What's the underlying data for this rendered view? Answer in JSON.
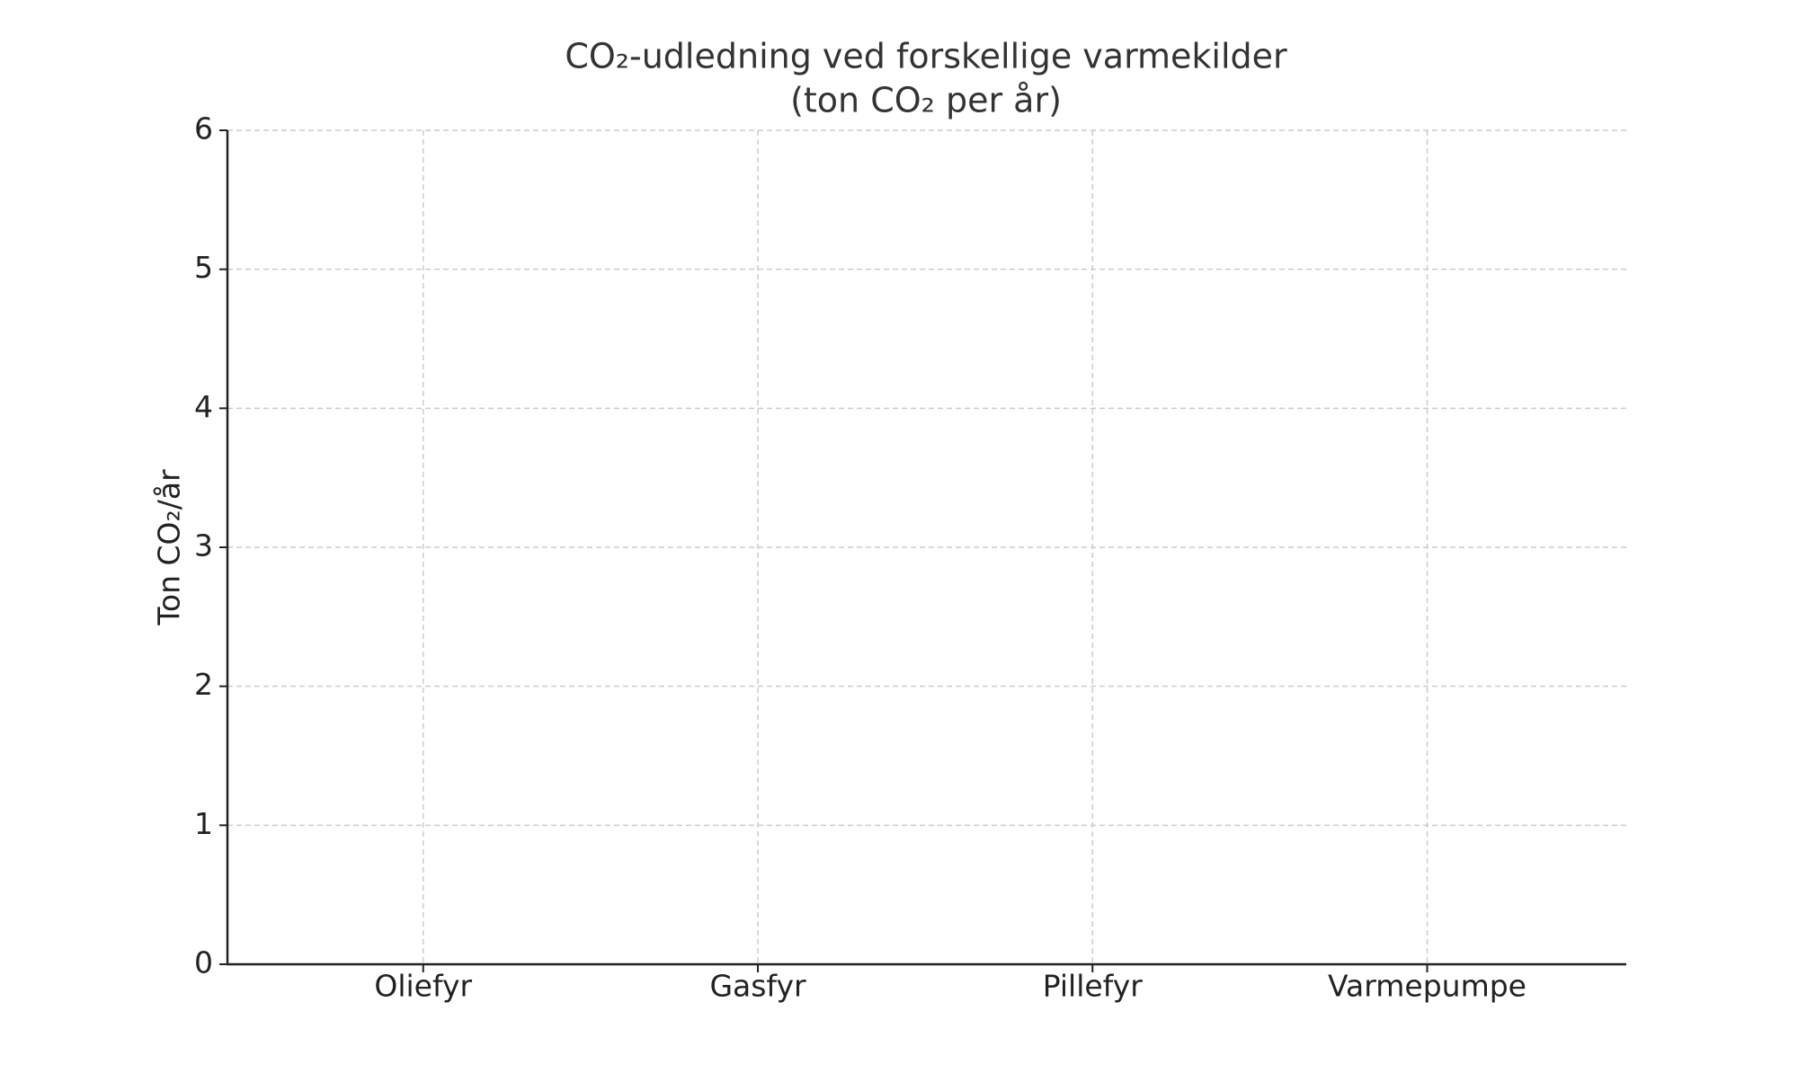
{
  "chart_data": {
    "type": "bar",
    "title": [
      "CO₂-udledning ved forskellige varmekilder",
      "(ton CO₂ per år)"
    ],
    "y_label": "Ton CO₂/år",
    "categories": [
      "Oliefyr",
      "Gasfyr",
      "Pillefyr",
      "Varmepumpe"
    ],
    "ylim": [
      0,
      6
    ],
    "yticks": [
      0,
      1,
      2,
      3,
      4,
      5,
      6
    ],
    "grid": true
  }
}
